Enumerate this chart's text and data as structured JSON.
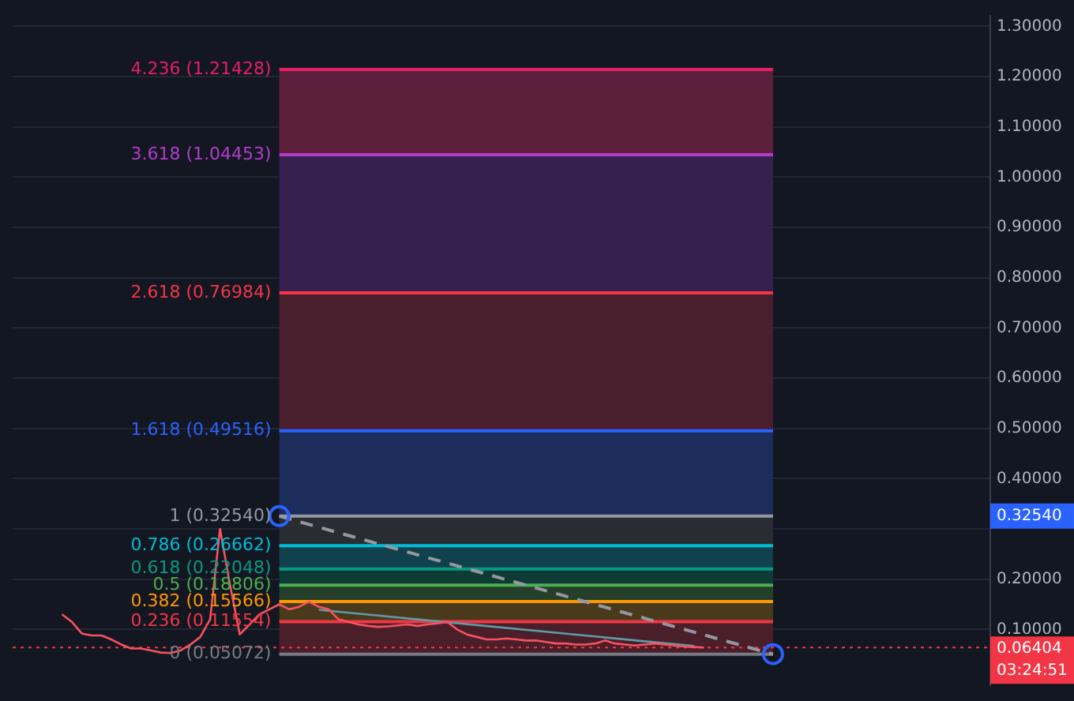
{
  "chart_data": {
    "type": "line",
    "categories": [
      null,
      null,
      null,
      null,
      null,
      null,
      null,
      null,
      null,
      null,
      null,
      null,
      null,
      null,
      null,
      null,
      null,
      null,
      null,
      null,
      null,
      null,
      null,
      null,
      null,
      null,
      null,
      null,
      null,
      null,
      null,
      null,
      null,
      null,
      null,
      null,
      null,
      null,
      null,
      null,
      null,
      null,
      null,
      null,
      null,
      null,
      null,
      null,
      null,
      null,
      null,
      null,
      null,
      null,
      null,
      null,
      null,
      null,
      null,
      null,
      null,
      null,
      null,
      null,
      null,
      null,
      null,
      null,
      null,
      null,
      null,
      null,
      null,
      null,
      null,
      null,
      null,
      null,
      null,
      null,
      null,
      null,
      null,
      null,
      null,
      null,
      null,
      null,
      null,
      null,
      null,
      null,
      null,
      null,
      null,
      null,
      null,
      null,
      null,
      null
    ],
    "series": [
      {
        "color": "#f7525f",
        "line_style": "solid",
        "marker": "none",
        "values": [
          null,
          null,
          null,
          null,
          null,
          0.13,
          0.115,
          0.092,
          0.088,
          0.088,
          0.08,
          0.07,
          0.062,
          0.062,
          0.058,
          0.054,
          0.053,
          0.058,
          0.07,
          0.085,
          0.12,
          0.3,
          0.19,
          0.09,
          0.11,
          0.13,
          0.14,
          0.15,
          0.14,
          0.145,
          0.155,
          0.145,
          0.14,
          0.12,
          0.115,
          0.11,
          0.107,
          0.105,
          0.106,
          0.108,
          0.11,
          0.107,
          0.11,
          0.112,
          0.115,
          0.1,
          0.09,
          0.085,
          0.08,
          0.08,
          0.082,
          0.08,
          0.078,
          0.078,
          0.075,
          0.072,
          0.072,
          0.07,
          0.07,
          0.072,
          0.078,
          0.072,
          0.07,
          0.068,
          0.07,
          0.072,
          0.07,
          0.068,
          0.066,
          0.065,
          0.064,
          null,
          null,
          null,
          null,
          null,
          null,
          null,
          null,
          null,
          null,
          null,
          null,
          null,
          null,
          null,
          null,
          null,
          null,
          null,
          null,
          null,
          null,
          null,
          null,
          null,
          null,
          null,
          null,
          null
        ]
      },
      {
        "color": "#9598a1",
        "line_style": "dashed",
        "marker": "circle",
        "values": [
          null,
          null,
          null,
          null,
          null,
          null,
          null,
          null,
          null,
          null,
          null,
          null,
          null,
          null,
          null,
          null,
          null,
          null,
          null,
          null,
          null,
          null,
          null,
          null,
          null,
          null,
          null,
          0.3254,
          null,
          null,
          null,
          null,
          null,
          null,
          null,
          null,
          null,
          null,
          null,
          null,
          null,
          null,
          null,
          null,
          null,
          null,
          null,
          null,
          null,
          null,
          null,
          null,
          null,
          null,
          null,
          null,
          null,
          null,
          null,
          null,
          null,
          null,
          null,
          null,
          null,
          null,
          null,
          null,
          null,
          null,
          null,
          null,
          null,
          null,
          null,
          null,
          null,
          0.05072,
          null,
          null,
          null,
          null,
          null,
          null,
          null,
          null,
          null,
          null,
          null,
          null,
          null,
          null,
          null,
          null,
          null,
          null,
          null,
          null,
          null,
          null
        ]
      },
      {
        "color": "#5d9ca8",
        "line_style": "solid",
        "marker": "none",
        "values": [
          null,
          null,
          null,
          null,
          null,
          null,
          null,
          null,
          null,
          null,
          null,
          null,
          null,
          null,
          null,
          null,
          null,
          null,
          null,
          null,
          null,
          null,
          null,
          null,
          null,
          null,
          null,
          null,
          null,
          null,
          null,
          0.139,
          null,
          null,
          null,
          null,
          null,
          null,
          null,
          null,
          null,
          null,
          null,
          null,
          null,
          null,
          null,
          null,
          null,
          null,
          null,
          null,
          null,
          null,
          null,
          null,
          null,
          null,
          null,
          null,
          null,
          null,
          null,
          null,
          null,
          null,
          null,
          null,
          null,
          0.067,
          null,
          null,
          null,
          null,
          null,
          null,
          null,
          null,
          null,
          null,
          null,
          null,
          null,
          null,
          null,
          null,
          null,
          null,
          null,
          null,
          null,
          null,
          null,
          null,
          null,
          null,
          null,
          null,
          null,
          null
        ]
      }
    ],
    "ylim": [
      -0.011,
      1.321
    ],
    "yticks": [
      {
        "value": 0.1,
        "label": "0.10000"
      },
      {
        "value": 0.2,
        "label": "0.20000"
      },
      {
        "value": 0.3,
        "label": null
      },
      {
        "value": 0.4,
        "label": "0.40000"
      },
      {
        "value": 0.5,
        "label": "0.50000"
      },
      {
        "value": 0.6,
        "label": "0.60000"
      },
      {
        "value": 0.7,
        "label": "0.70000"
      },
      {
        "value": 0.8,
        "label": "0.80000"
      },
      {
        "value": 0.9,
        "label": "0.90000"
      },
      {
        "value": 1.0,
        "label": "1.00000"
      },
      {
        "value": 1.1,
        "label": "1.10000"
      },
      {
        "value": 1.2,
        "label": "1.20000"
      },
      {
        "value": 1.3,
        "label": "1.30000"
      }
    ],
    "grid": "y",
    "legend": false,
    "ref_lines": [
      {
        "axis": "y",
        "value": 1.21428,
        "label": "4.236 (1.21428)",
        "color": "#e91e63"
      },
      {
        "axis": "y",
        "value": 1.04453,
        "label": "3.618 (1.04453)",
        "color": "#b33bcc"
      },
      {
        "axis": "y",
        "value": 0.76984,
        "label": "2.618 (0.76984)",
        "color": "#f23645"
      },
      {
        "axis": "y",
        "value": 0.49516,
        "label": "1.618 (0.49516)",
        "color": "#2962ff"
      },
      {
        "axis": "y",
        "value": 0.3254,
        "label": "1 (0.32540)",
        "color": "#9598a1"
      },
      {
        "axis": "y",
        "value": 0.26662,
        "label": "0.786 (0.26662)",
        "color": "#00bcd4"
      },
      {
        "axis": "y",
        "value": 0.22048,
        "label": "0.618 (0.22048)",
        "color": "#089981"
      },
      {
        "axis": "y",
        "value": 0.18806,
        "label": "0.5 (0.18806)",
        "color": "#4caf50"
      },
      {
        "axis": "y",
        "value": 0.15566,
        "label": "0.382 (0.15566)",
        "color": "#ff9800"
      },
      {
        "axis": "y",
        "value": 0.11554,
        "label": "0.236 (0.11554)",
        "color": "#f23645"
      },
      {
        "axis": "y",
        "value": 0.05072,
        "label": "0 (0.05072)",
        "color": "#787b86"
      },
      {
        "axis": "y",
        "value": 0.06404,
        "label": "0.06404",
        "color": "#f23645",
        "line_style": "dotted"
      }
    ],
    "bands": [
      {
        "axis": "y",
        "from": 1.04453,
        "to": 1.21428,
        "color": "#5c1f3c"
      },
      {
        "axis": "y",
        "from": 0.76984,
        "to": 1.04453,
        "color": "#35204f"
      },
      {
        "axis": "y",
        "from": 0.49516,
        "to": 0.76984,
        "color": "#4a1f2e"
      },
      {
        "axis": "y",
        "from": 0.3254,
        "to": 0.49516,
        "color": "#1c2d5c"
      },
      {
        "axis": "y",
        "from": 0.26662,
        "to": 0.3254,
        "color": "#2a2c34"
      },
      {
        "axis": "y",
        "from": 0.22048,
        "to": 0.26662,
        "color": "#11414c"
      },
      {
        "axis": "y",
        "from": 0.18806,
        "to": 0.22048,
        "color": "#0f3b36"
      },
      {
        "axis": "y",
        "from": 0.15566,
        "to": 0.18806,
        "color": "#263f2a"
      },
      {
        "axis": "y",
        "from": 0.11554,
        "to": 0.15566,
        "color": "#4a3a1c"
      },
      {
        "axis": "y",
        "from": 0.05072,
        "to": 0.11554,
        "color": "#4a1f2a"
      }
    ],
    "annotations": [
      "03:24:51",
      "0.32540"
    ]
  }
}
